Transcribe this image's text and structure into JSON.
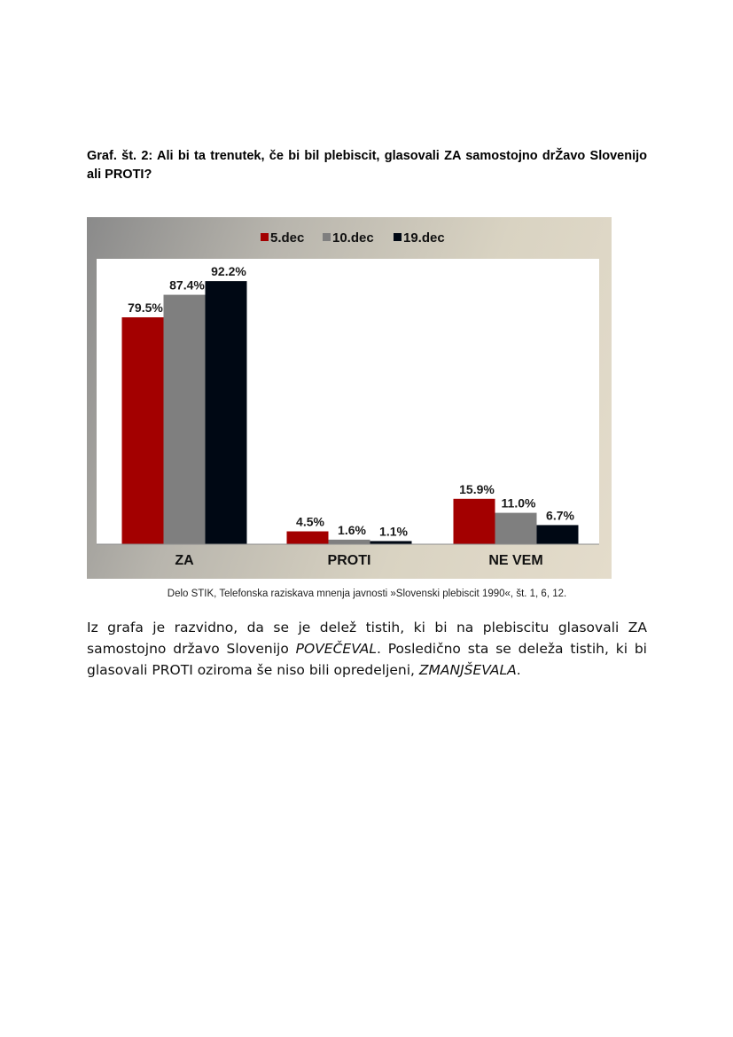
{
  "heading": "Graf. št. 2: Ali bi ta trenutek, če bi bil plebiscit, glasovali ZA samostojno drŽavo Slovenijo ali PROTI?",
  "caption": "Delo STIK, Telefonska raziskava mnenja javnosti »Slovenski plebiscit 1990«, št. 1, 6, 12.",
  "paragraph": {
    "part1": "Iz grafa je razvidno, da se je delež tistih, ki bi na plebiscitu glasovali ZA samostojno državo Slovenijo ",
    "em1": "POVEČEVAL",
    "part2": ". Posledično sta se deleža tistih, ki bi glasovali PROTI oziroma še niso bili opredeljeni, ",
    "em2": "ZMANJŠEVALA",
    "part3": "."
  },
  "chart_data": {
    "type": "bar",
    "categories": [
      "ZA",
      "PROTI",
      "NE VEM"
    ],
    "series": [
      {
        "name": "5.dec",
        "color": "#a30000",
        "values": [
          79.5,
          4.5,
          15.9
        ],
        "labels": [
          "79.5%",
          "4.5%",
          "15.9%"
        ]
      },
      {
        "name": "10.dec",
        "color": "#7f7f7f",
        "values": [
          87.4,
          1.6,
          11.0
        ],
        "labels": [
          "87.4%",
          "1.6%",
          "11.0%"
        ]
      },
      {
        "name": "19.dec",
        "color": "#000814",
        "values": [
          92.2,
          1.1,
          6.7
        ],
        "labels": [
          "92.2%",
          "1.1%",
          "6.7%"
        ]
      }
    ],
    "ylim": [
      0,
      100
    ],
    "legend": "top-center",
    "grid": false,
    "title": "",
    "xlabel": "",
    "ylabel": ""
  }
}
